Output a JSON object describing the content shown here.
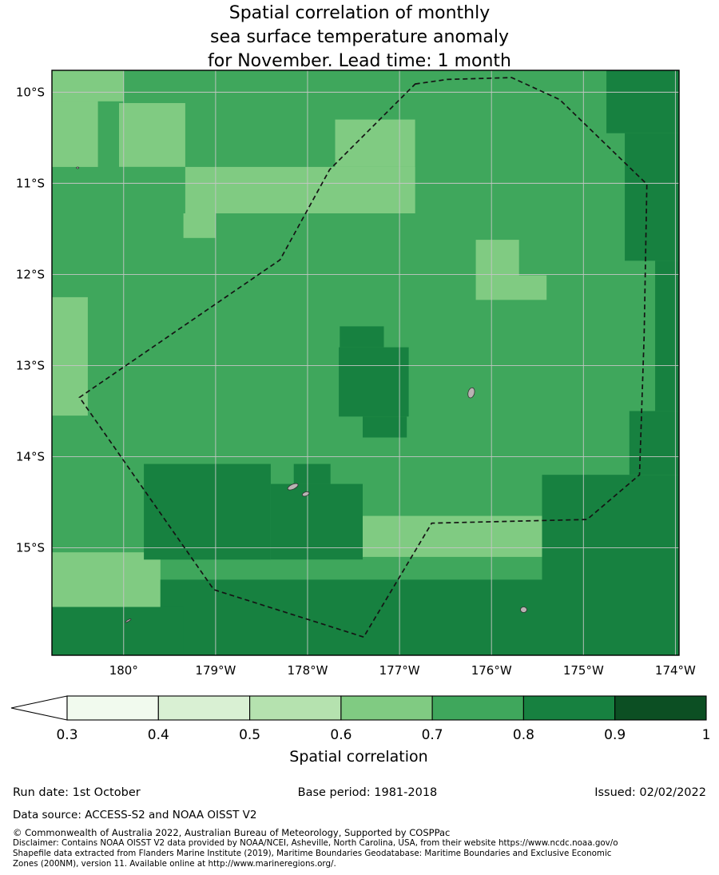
{
  "title": {
    "lines": [
      "Spatial correlation of monthly",
      "sea surface temperature anomaly",
      "for November. Lead time: 1 month"
    ]
  },
  "chart_data": {
    "type": "heatmap",
    "title": "Spatial correlation of monthly sea surface temperature anomaly for November. Lead time: 1 month",
    "value_range": [
      0.3,
      1.0
    ],
    "bin_edges": [
      0.3,
      0.4,
      0.5,
      0.6,
      0.7,
      0.8,
      0.9,
      1.0
    ],
    "grid": true,
    "colorbar": {
      "title": "Spatial correlation",
      "orientation": "horizontal",
      "tick_labels": [
        "0.3",
        "0.4",
        "0.5",
        "0.6",
        "0.7",
        "0.8",
        "0.9",
        "1"
      ],
      "bin_colors": [
        "#f1faee",
        "#d9f0d3",
        "#b5e2af",
        "#80cb82",
        "#3fa75c",
        "#178140",
        "#0c4f23"
      ],
      "under_arrow_color": "#ffffff"
    },
    "map": {
      "extent": {
        "lon_west_max": 180.78,
        "lon_west_min": 173.96,
        "lat_south_min": 9.76,
        "lat_south_max": 16.18
      },
      "lon_ticks": [
        {
          "value": 180,
          "label": "180°"
        },
        {
          "value": 179,
          "label": "179°W"
        },
        {
          "value": 178,
          "label": "178°W"
        },
        {
          "value": 177,
          "label": "177°W"
        },
        {
          "value": 176,
          "label": "176°W"
        },
        {
          "value": 175,
          "label": "175°W"
        },
        {
          "value": 174,
          "label": "174°W"
        }
      ],
      "lat_ticks": [
        {
          "value": 10,
          "label": "10°S"
        },
        {
          "value": 11,
          "label": "11°S"
        },
        {
          "value": 12,
          "label": "12°S"
        },
        {
          "value": 13,
          "label": "13°S"
        },
        {
          "value": 14,
          "label": "14°S"
        },
        {
          "value": 15,
          "label": "15°S"
        }
      ],
      "background_value": 0.75,
      "patches": [
        {
          "lonW": [
            180.78,
            180.28
          ],
          "latS": [
            9.76,
            10.82
          ],
          "value": 0.65
        },
        {
          "lonW": [
            180.78,
            180.0
          ],
          "latS": [
            9.76,
            10.1
          ],
          "value": 0.65
        },
        {
          "lonW": [
            180.05,
            179.33
          ],
          "latS": [
            10.12,
            10.82
          ],
          "value": 0.65
        },
        {
          "lonW": [
            179.33,
            176.83
          ],
          "latS": [
            10.82,
            11.33
          ],
          "value": 0.65
        },
        {
          "lonW": [
            177.7,
            176.83
          ],
          "latS": [
            10.3,
            10.82
          ],
          "value": 0.65
        },
        {
          "lonW": [
            179.35,
            179.0
          ],
          "latS": [
            11.33,
            11.6
          ],
          "value": 0.65
        },
        {
          "lonW": [
            180.78,
            180.39
          ],
          "latS": [
            12.25,
            13.55
          ],
          "value": 0.65
        },
        {
          "lonW": [
            176.17,
            175.7
          ],
          "latS": [
            11.62,
            12.01
          ],
          "value": 0.65
        },
        {
          "lonW": [
            176.17,
            175.4
          ],
          "latS": [
            12.01,
            12.28
          ],
          "value": 0.65
        },
        {
          "lonW": [
            177.4,
            175.42
          ],
          "latS": [
            14.65,
            15.1
          ],
          "value": 0.65
        },
        {
          "lonW": [
            180.78,
            179.6
          ],
          "latS": [
            15.05,
            15.65
          ],
          "value": 0.65
        },
        {
          "lonW": [
            174.75,
            173.96
          ],
          "latS": [
            9.76,
            10.45
          ],
          "value": 0.85
        },
        {
          "lonW": [
            174.55,
            173.96
          ],
          "latS": [
            10.45,
            11.85
          ],
          "value": 0.85
        },
        {
          "lonW": [
            174.22,
            173.96
          ],
          "latS": [
            11.85,
            13.5
          ],
          "value": 0.85
        },
        {
          "lonW": [
            174.5,
            173.96
          ],
          "latS": [
            13.5,
            14.2
          ],
          "value": 0.85
        },
        {
          "lonW": [
            175.45,
            173.96
          ],
          "latS": [
            14.2,
            16.18
          ],
          "value": 0.85
        },
        {
          "lonW": [
            179.6,
            175.45
          ],
          "latS": [
            15.35,
            16.18
          ],
          "value": 0.85
        },
        {
          "lonW": [
            180.78,
            179.35
          ],
          "latS": [
            15.65,
            16.18
          ],
          "value": 0.85
        },
        {
          "lonW": [
            179.78,
            178.4
          ],
          "latS": [
            14.08,
            15.13
          ],
          "value": 0.85
        },
        {
          "lonW": [
            178.4,
            177.4
          ],
          "latS": [
            14.3,
            15.13
          ],
          "value": 0.85
        },
        {
          "lonW": [
            178.15,
            177.75
          ],
          "latS": [
            14.08,
            14.3
          ],
          "value": 0.85
        },
        {
          "lonW": [
            177.66,
            176.9
          ],
          "latS": [
            12.8,
            13.56
          ],
          "value": 0.85
        },
        {
          "lonW": [
            177.4,
            176.92
          ],
          "latS": [
            13.56,
            13.79
          ],
          "value": 0.85
        },
        {
          "lonW": [
            177.65,
            177.17
          ],
          "latS": [
            12.57,
            12.8
          ],
          "value": 0.85
        }
      ],
      "eez_boundary": [
        [
          176.83,
          9.91
        ],
        [
          176.48,
          9.86
        ],
        [
          175.78,
          9.84
        ],
        [
          175.26,
          10.08
        ],
        [
          174.31,
          11.01
        ],
        [
          174.34,
          12.67
        ],
        [
          174.39,
          14.2
        ],
        [
          174.96,
          14.69
        ],
        [
          176.65,
          14.73
        ],
        [
          177.39,
          15.98
        ],
        [
          179.02,
          15.46
        ],
        [
          180.48,
          13.35
        ],
        [
          178.3,
          11.84
        ],
        [
          177.76,
          10.85
        ]
      ],
      "islands": [
        {
          "name": "island-1",
          "lonW": 176.22,
          "latS": 13.3,
          "rx": 4,
          "ry": 6.5,
          "rot": 15
        },
        {
          "name": "island-2",
          "lonW": 178.16,
          "latS": 14.33,
          "rx": 7,
          "ry": 3,
          "rot": -25
        },
        {
          "name": "island-3",
          "lonW": 178.02,
          "latS": 14.41,
          "rx": 4.5,
          "ry": 2.5,
          "rot": -20
        },
        {
          "name": "island-4",
          "lonW": 175.65,
          "latS": 15.68,
          "rx": 4,
          "ry": 3.5,
          "rot": 0
        },
        {
          "name": "island-5",
          "lonW": 179.95,
          "latS": 15.8,
          "rx": 4,
          "ry": 1,
          "rot": -30
        },
        {
          "name": "island-6",
          "lonW": 180.5,
          "latS": 10.83,
          "rx": 1.5,
          "ry": 1,
          "rot": 0
        }
      ]
    }
  },
  "footer": {
    "run_date": "Run date: 1st October",
    "base_period": "Base period: 1981-2018",
    "issued": "Issued: 02/02/2022",
    "data_source": "Data source: ACCESS-S2 and NOAA OISST V2",
    "copyright": "© Commonwealth of Australia 2022, Australian Bureau of Meteorology, Supported by COSPPac",
    "disclaimer_lines": [
      "Disclaimer: Contains NOAA OISST V2 data provided by NOAA/NCEI, Asheville, North Carolina, USA, from their website https://www.ncdc.noaa.gov/o",
      "Shapefile data extracted from Flanders Marine Institute (2019), Maritime Boundaries Geodatabase: Maritime Boundaries and Exclusive Economic",
      "Zones (200NM), version 11. Available online at http://www.marineregions.org/."
    ]
  }
}
